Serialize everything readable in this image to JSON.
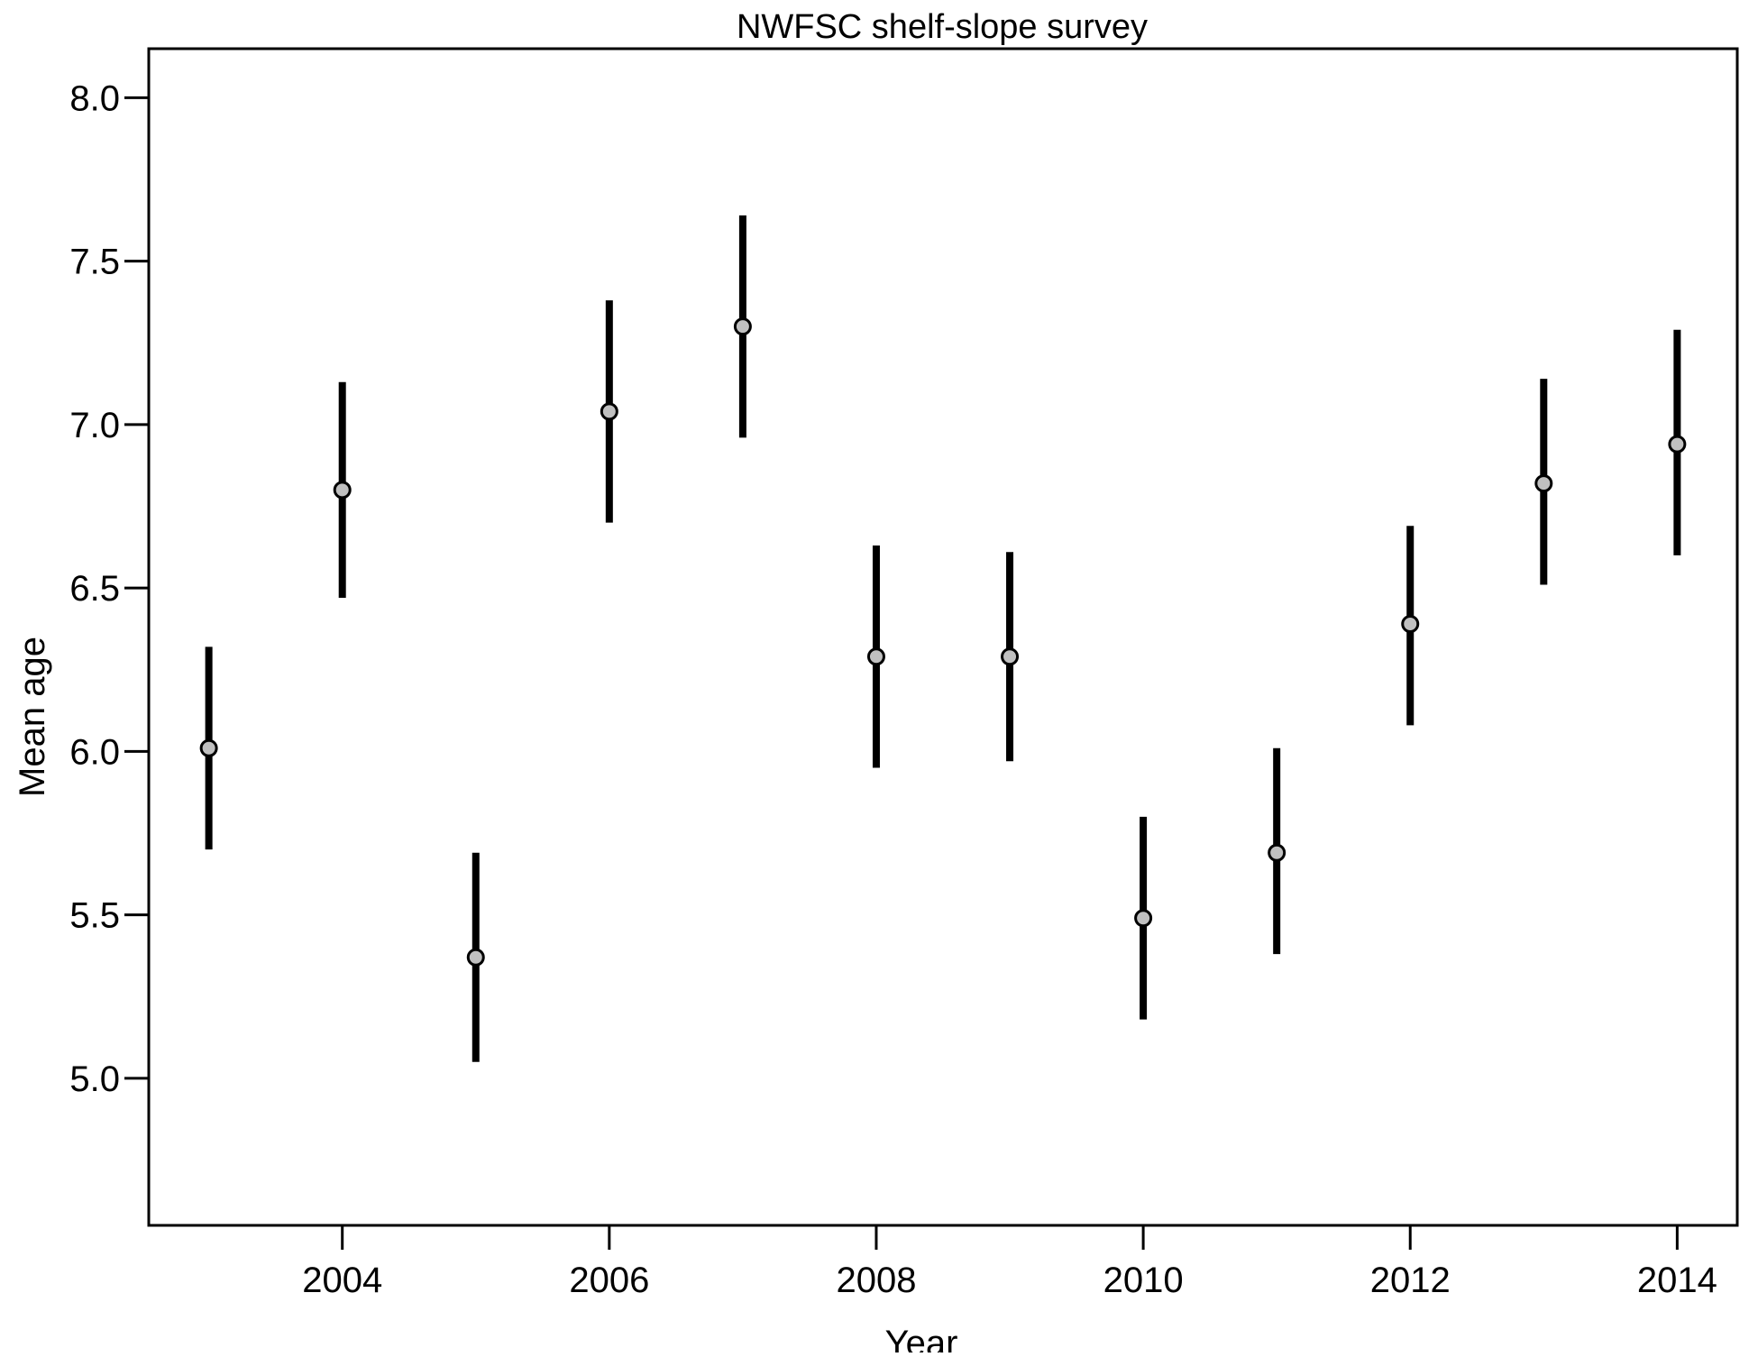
{
  "chart_data": {
    "type": "scatter",
    "title": "NWFSC shelf-slope survey",
    "xlabel": "Year",
    "ylabel": "Mean age",
    "xlim": [
      2002.55,
      2014.45
    ],
    "ylim": [
      4.55,
      8.15
    ],
    "x_ticks": [
      2004,
      2006,
      2008,
      2010,
      2012,
      2014
    ],
    "y_ticks": [
      "5.0",
      "5.5",
      "6.0",
      "6.5",
      "7.0",
      "7.5",
      "8.0"
    ],
    "grid": false,
    "series": [
      {
        "points": [
          {
            "x": 2003,
            "y": 6.01,
            "lower": 5.7,
            "upper": 6.32
          },
          {
            "x": 2004,
            "y": 6.8,
            "lower": 6.47,
            "upper": 7.13
          },
          {
            "x": 2005,
            "y": 5.37,
            "lower": 5.05,
            "upper": 5.69
          },
          {
            "x": 2006,
            "y": 7.04,
            "lower": 6.7,
            "upper": 7.38
          },
          {
            "x": 2007,
            "y": 7.3,
            "lower": 6.96,
            "upper": 7.64
          },
          {
            "x": 2008,
            "y": 6.29,
            "lower": 5.95,
            "upper": 6.63
          },
          {
            "x": 2009,
            "y": 6.29,
            "lower": 5.97,
            "upper": 6.61
          },
          {
            "x": 2010,
            "y": 5.49,
            "lower": 5.18,
            "upper": 5.8
          },
          {
            "x": 2011,
            "y": 5.69,
            "lower": 5.38,
            "upper": 6.01
          },
          {
            "x": 2012,
            "y": 6.39,
            "lower": 6.08,
            "upper": 6.69
          },
          {
            "x": 2013,
            "y": 6.82,
            "lower": 6.51,
            "upper": 7.14
          },
          {
            "x": 2014,
            "y": 6.94,
            "lower": 6.6,
            "upper": 7.29
          }
        ]
      }
    ],
    "colors": {
      "point_fill": "#c0c0c0",
      "point_stroke": "#000000",
      "error_bar": "#000000",
      "axis": "#000000"
    }
  }
}
